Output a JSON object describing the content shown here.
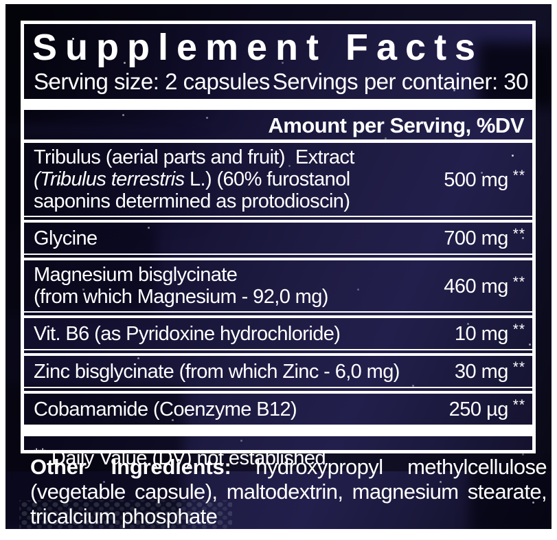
{
  "colors": {
    "panel_bg": "#17142f",
    "frame": "#0a0914",
    "rule": "#ffffff",
    "text": "#ffffff"
  },
  "header": {
    "title": "Supplement Facts",
    "serving_size": "Serving size: 2 capsules",
    "servings_per_container": "Servings per container: 30",
    "amount_header": "Amount per Serving, %DV"
  },
  "rows": [
    {
      "lines": [
        [
          {
            "text": "Tribulus (aerial parts and fruit)  Extract"
          }
        ],
        [
          {
            "text": "(Tribulus terrestris",
            "italic": true
          },
          {
            "text": " L.) (60% furostanol"
          }
        ],
        [
          {
            "text": "saponins determined as protodioscin)"
          }
        ]
      ],
      "amount": "500 mg",
      "dv": "**"
    },
    {
      "lines": [
        [
          {
            "text": "Glycine"
          }
        ]
      ],
      "amount": "700 mg",
      "dv": "**"
    },
    {
      "lines": [
        [
          {
            "text": "Magnesium bisglycinate"
          }
        ],
        [
          {
            "text": "(from which Magnesium - 92,0 mg)"
          }
        ]
      ],
      "amount": "460 mg",
      "dv": "**"
    },
    {
      "lines": [
        [
          {
            "text": "Vit. B6 (as Pyridoxine hydrochloride)"
          }
        ]
      ],
      "amount": "10 mg",
      "dv": "**"
    },
    {
      "lines": [
        [
          {
            "text": "Zinc bisglycinate (from which Zinc - 6,0 mg)"
          }
        ]
      ],
      "amount": "30 mg",
      "dv": "**"
    },
    {
      "lines": [
        [
          {
            "text": "Cobamamide (Coenzyme B12)"
          }
        ]
      ],
      "amount": "250 µg",
      "dv": "**"
    }
  ],
  "footnote": {
    "stars": "**",
    "text": "Daily Value (DV) not established"
  },
  "other_ingredients": {
    "label": "Other Ingredients:",
    "text": "hydroxypropyl methylcellulose (vegetable capsule), maltodextrin, magnesium stearate, tricalcium phosphate"
  }
}
